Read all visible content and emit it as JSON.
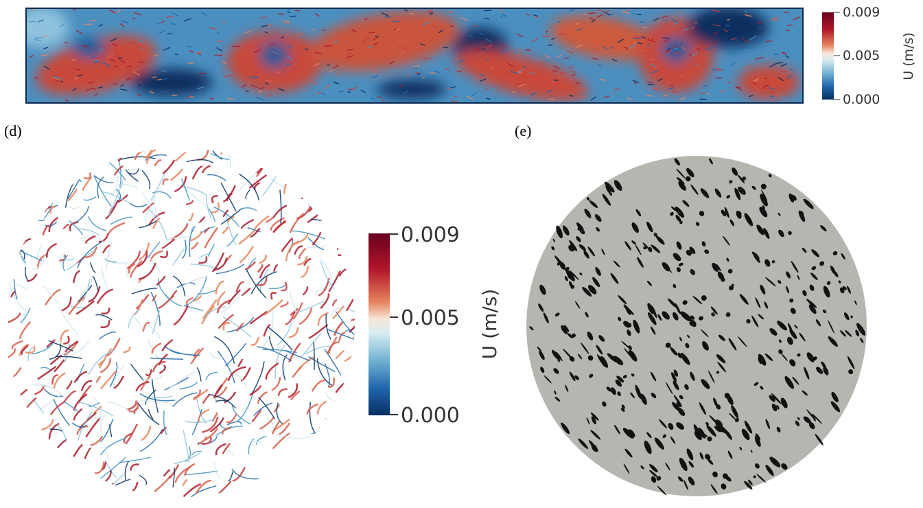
{
  "top_panel": {
    "colorbar": {
      "ticks": [
        "0.009",
        "0.005",
        "0.000"
      ],
      "label": "U (m/s)"
    }
  },
  "panel_d": {
    "label": "(d)",
    "colorbar": {
      "ticks": [
        "0.009",
        "0.005",
        "0.000"
      ],
      "label": "U (m/s)"
    }
  },
  "panel_e": {
    "label": "(e)"
  }
}
